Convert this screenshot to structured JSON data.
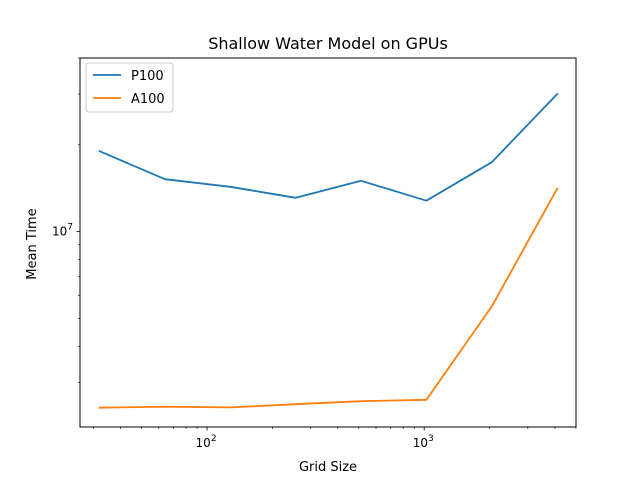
{
  "chart_data": {
    "type": "line",
    "title": "Shallow Water Model on GPUs",
    "xlabel": "Grid Size",
    "ylabel": "Mean Time",
    "xscale": "log",
    "yscale": "log",
    "xlim": [
      26,
      5000
    ],
    "ylim": [
      2100000,
      40000000
    ],
    "x": [
      32,
      64,
      128,
      256,
      512,
      1024,
      2048,
      4096
    ],
    "series": [
      {
        "name": "P100",
        "color": "#1f77b4",
        "values": [
          19000000,
          15200000,
          14300000,
          13100000,
          15000000,
          12800000,
          17400000,
          30000000
        ]
      },
      {
        "name": "A100",
        "color": "#ff7f0e",
        "values": [
          2450000,
          2470000,
          2455000,
          2520000,
          2580000,
          2610000,
          5500000,
          14100000
        ]
      }
    ],
    "x_tick_labels": [
      {
        "value": 100,
        "base": "10",
        "exp": "2"
      },
      {
        "value": 1000,
        "base": "10",
        "exp": "3"
      }
    ],
    "y_tick_labels": [
      {
        "value": 10000000,
        "base": "10",
        "exp": "7"
      }
    ],
    "legend": "top-left",
    "grid": false
  }
}
